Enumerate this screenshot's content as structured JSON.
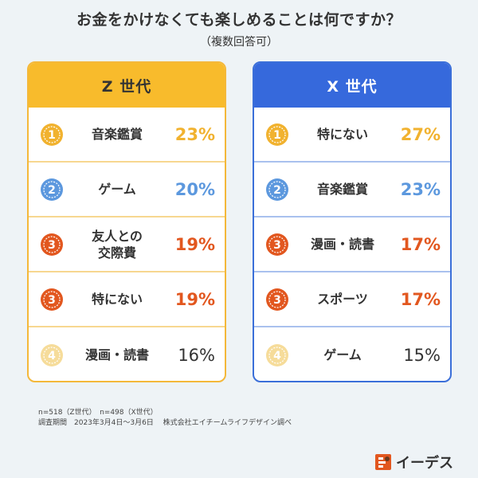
{
  "title": "お金をかけなくても楽しめることは何ですか？",
  "subtitle": "（複数回答可）",
  "colors": {
    "gold": "#f1b22f",
    "blue": "#5c98de",
    "orange": "#e2571f",
    "pale_gold": "#f6dc9a",
    "plain_text": "#333333"
  },
  "panels": [
    {
      "heading": "Z 世代",
      "items": [
        {
          "rank": "1",
          "medal": "gold",
          "label": "音楽鑑賞",
          "value": "23%",
          "value_color": "gold"
        },
        {
          "rank": "2",
          "medal": "blue",
          "label": "ゲーム",
          "value": "20%",
          "value_color": "blue"
        },
        {
          "rank": "3",
          "medal": "orange",
          "label": "友人との\n交際費",
          "value": "19%",
          "value_color": "orange"
        },
        {
          "rank": "3",
          "medal": "orange",
          "label": "特にない",
          "value": "19%",
          "value_color": "orange"
        },
        {
          "rank": "4",
          "medal": "pale_gold",
          "label": "漫画・読書",
          "value": "16%",
          "value_color": "plain"
        }
      ]
    },
    {
      "heading": "X 世代",
      "items": [
        {
          "rank": "1",
          "medal": "gold",
          "label": "特にない",
          "value": "27%",
          "value_color": "gold"
        },
        {
          "rank": "2",
          "medal": "blue",
          "label": "音楽鑑賞",
          "value": "23%",
          "value_color": "blue"
        },
        {
          "rank": "3",
          "medal": "orange",
          "label": "漫画・読書",
          "value": "17%",
          "value_color": "orange"
        },
        {
          "rank": "3",
          "medal": "orange",
          "label": "スポーツ",
          "value": "17%",
          "value_color": "orange"
        },
        {
          "rank": "4",
          "medal": "pale_gold",
          "label": "ゲーム",
          "value": "15%",
          "value_color": "plain"
        }
      ]
    }
  ],
  "notes": {
    "sample": "n=518（Z世代）　n=498（X世代）",
    "period": "調査期間　2023年3月4日～3月6日　 株式会社エイチームライフデザイン調べ"
  },
  "logo": {
    "text": "イーデス",
    "icon": "ides-logo-icon"
  }
}
